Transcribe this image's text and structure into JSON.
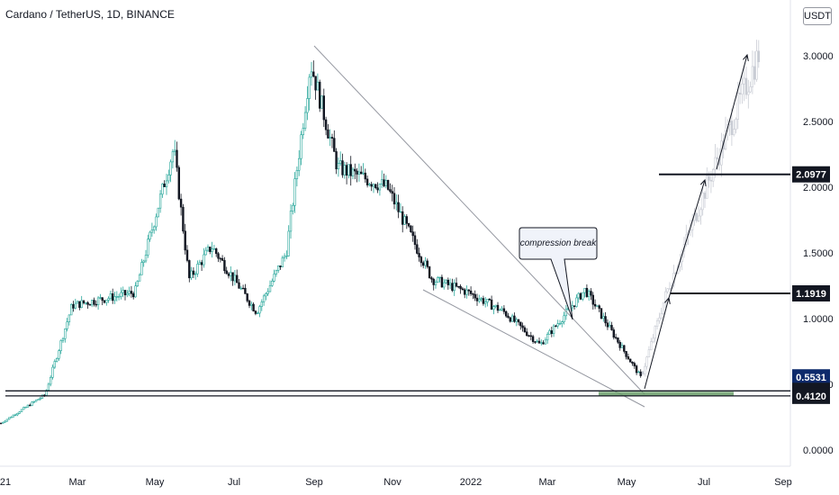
{
  "header": {
    "title": "Cardano / TetherUS, 1D, BINANCE",
    "quote_currency": "USDT"
  },
  "annotation": {
    "callout": "compression break"
  },
  "chart_data": {
    "type": "candlestick",
    "title": "Cardano / TetherUS, 1D, BINANCE",
    "y_ticks": [
      "0.0000",
      "0.5000",
      "1.0000",
      "1.5000",
      "2.0000",
      "2.5000",
      "3.0000"
    ],
    "x_ticks": [
      "21",
      "Mar",
      "May",
      "Jul",
      "Sep",
      "Nov",
      "2022",
      "Mar",
      "May",
      "Jul",
      "Sep"
    ],
    "ylim": [
      -0.05,
      3.25
    ],
    "price_labels": [
      {
        "value": "2.0977",
        "style": "black"
      },
      {
        "value": "1.1919",
        "style": "black"
      },
      {
        "value": "0.5531",
        "style": "navy"
      },
      {
        "value": "0.4500",
        "style": "black"
      },
      {
        "value": "0.4120",
        "style": "black"
      }
    ],
    "levels": [
      2.0977,
      1.1919,
      0.45,
      0.412
    ],
    "demand_zone": [
      0.412,
      0.45
    ],
    "history": [
      [
        "21",
        0.2
      ],
      [
        "Feb",
        0.42
      ],
      [
        "Mar",
        1.1
      ],
      [
        "Apr",
        1.2
      ],
      [
        "May",
        2.3
      ],
      [
        "May",
        1.3
      ],
      [
        "Jun",
        1.55
      ],
      [
        "Jul",
        1.05
      ],
      [
        "Aug",
        1.5
      ],
      [
        "Sep",
        2.95
      ],
      [
        "Oct",
        2.15
      ],
      [
        "Nov",
        2.0
      ],
      [
        "Dec",
        1.3
      ],
      [
        "2022",
        1.2
      ],
      [
        "Feb",
        1.05
      ],
      [
        "Mar",
        0.8
      ],
      [
        "Apr",
        1.22
      ],
      [
        "May",
        0.55
      ]
    ],
    "projection": [
      [
        "May",
        0.55
      ],
      [
        "Jun",
        1.19
      ],
      [
        "Jul",
        2.1
      ],
      [
        "Aug",
        3.05
      ]
    ]
  }
}
